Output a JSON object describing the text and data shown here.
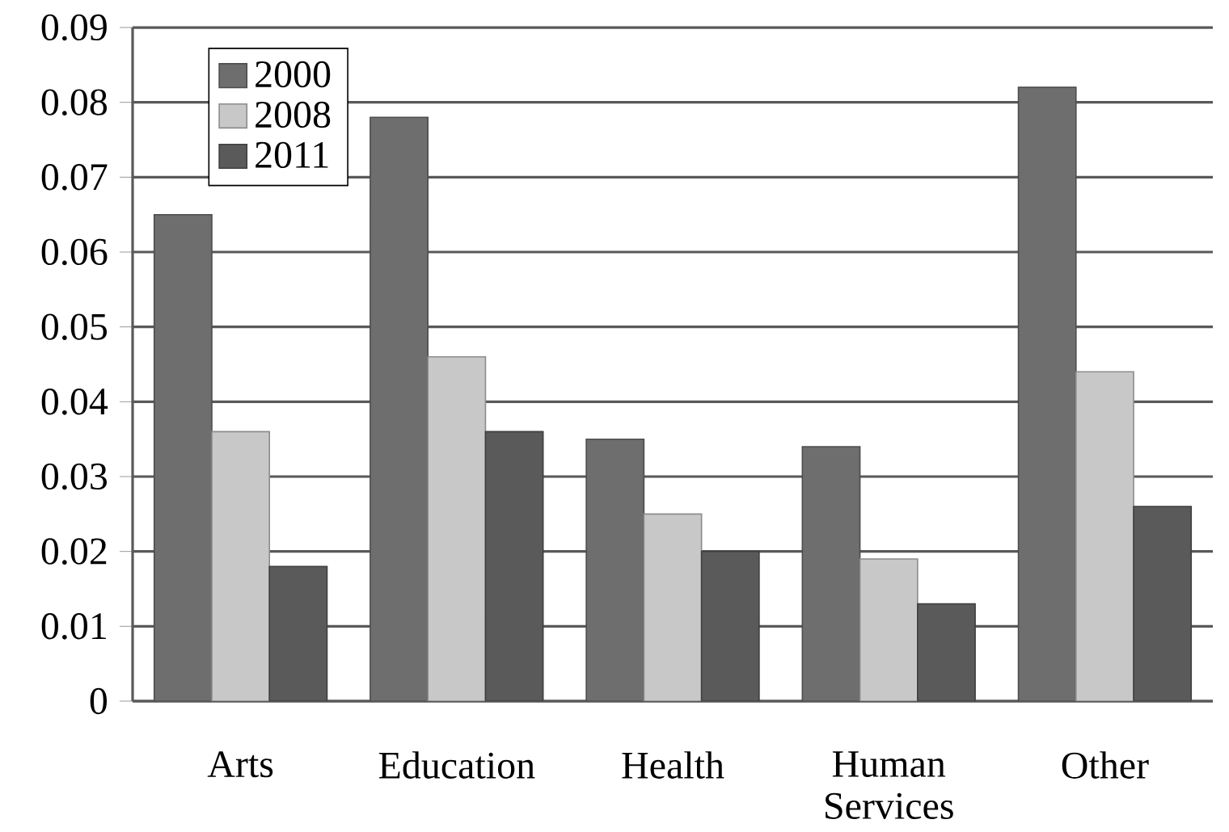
{
  "chart_data": {
    "type": "bar",
    "categories": [
      "Arts",
      "Education",
      "Health",
      "Human Services",
      "Other"
    ],
    "series": [
      {
        "name": "2000",
        "color": "#6e6e6e",
        "values": [
          0.065,
          0.078,
          0.035,
          0.034,
          0.082
        ]
      },
      {
        "name": "2008",
        "color": "#c8c8c8",
        "values": [
          0.036,
          0.046,
          0.025,
          0.019,
          0.044
        ]
      },
      {
        "name": "2011",
        "color": "#5a5a5a",
        "values": [
          0.018,
          0.036,
          0.02,
          0.013,
          0.026
        ]
      }
    ],
    "ylim": [
      0,
      0.09
    ],
    "yticks": [
      0,
      0.01,
      0.02,
      0.03,
      0.04,
      0.05,
      0.06,
      0.07,
      0.08,
      0.09
    ],
    "grid": "y",
    "legend": "top left"
  }
}
